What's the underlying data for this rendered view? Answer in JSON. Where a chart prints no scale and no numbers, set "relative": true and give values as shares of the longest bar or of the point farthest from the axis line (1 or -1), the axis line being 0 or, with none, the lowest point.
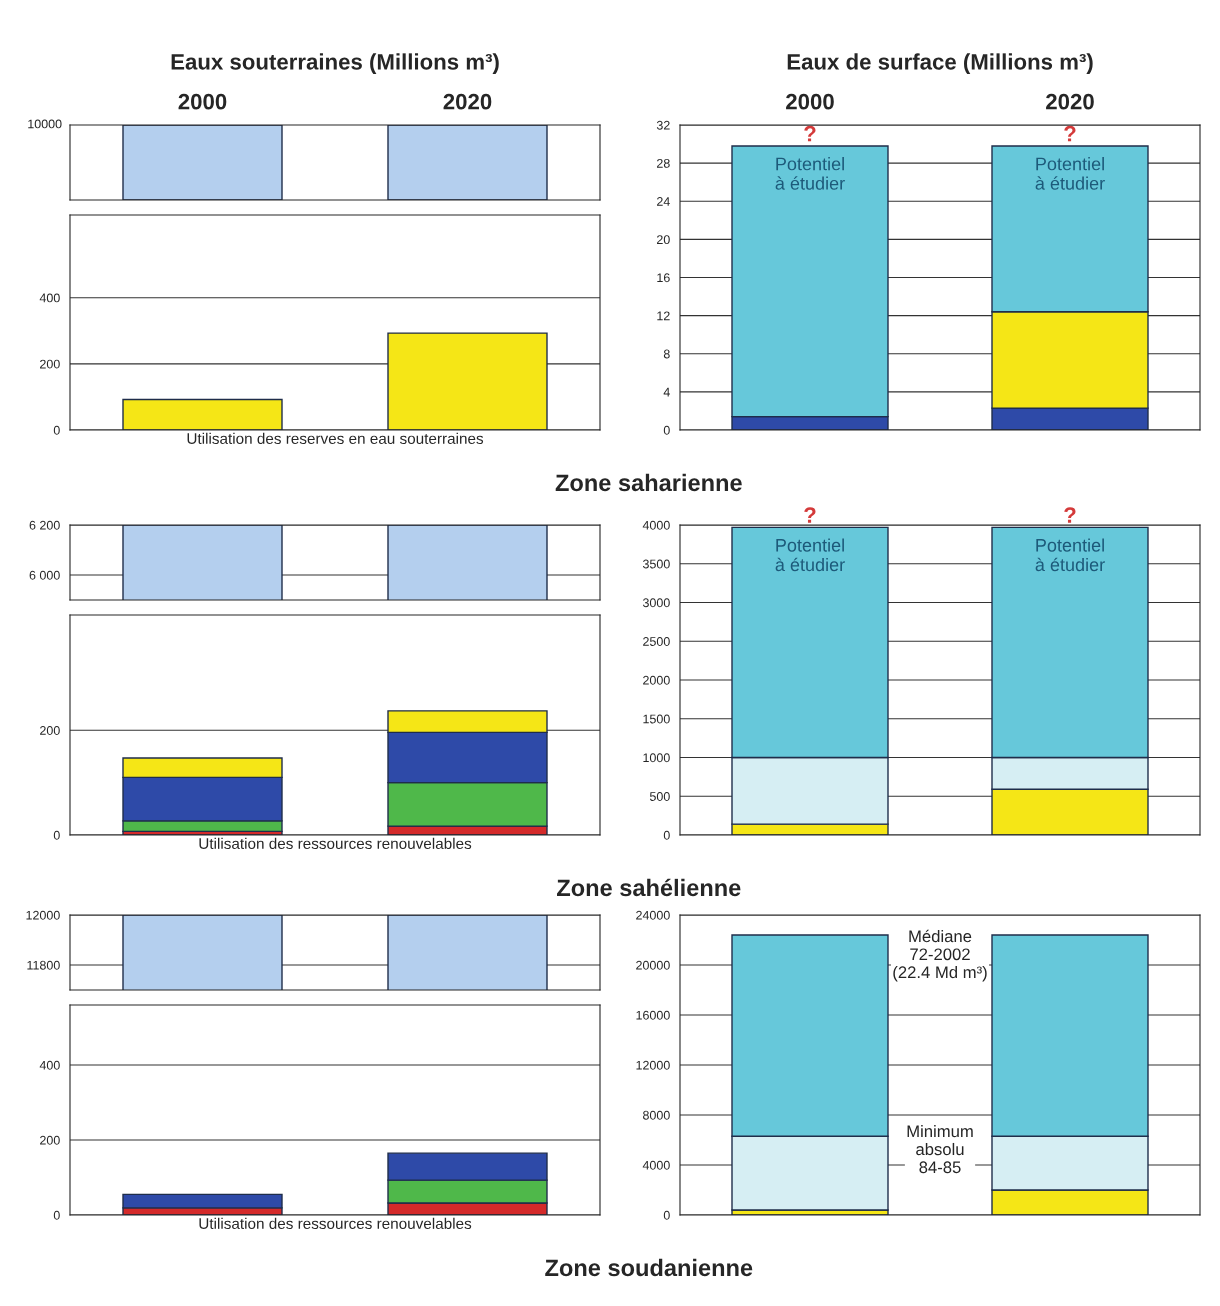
{
  "chart_data": [
    {
      "type": "bar",
      "title": "Eaux souterraines (Millions m³)",
      "categories": [
        "2000",
        "2020"
      ],
      "relative": true,
      "annotations": [
        "10000"
      ],
      "series": [
        {
          "color": "#b4cfee",
          "values": [
            1,
            1
          ]
        }
      ]
    },
    {
      "type": "bar",
      "xlabel": "Utilisation des reserves en eau souterraines",
      "categories": [
        "2000",
        "2020"
      ],
      "grid": "y",
      "ylim": [
        0,
        650
      ],
      "yticks": [
        0,
        200,
        400
      ],
      "tick_labels": "y",
      "annotations": [
        "Zone saharienne"
      ],
      "series": [
        {
          "color": "#f5e616",
          "values": [
            92,
            293
          ]
        }
      ]
    },
    {
      "type": "bar",
      "title": "Eaux de surface (Millions m³)",
      "categories": [
        "2000",
        "2020"
      ],
      "stacked": true,
      "grid": "y",
      "ylim": [
        0,
        32
      ],
      "yticks": [
        0,
        4,
        8,
        12,
        16,
        20,
        24,
        28,
        32
      ],
      "annotations": [
        {
          "text": "?",
          "x": "2000",
          "y": 29.8
        },
        {
          "text": "?",
          "x": "2020",
          "y": 29.8
        },
        {
          "text": "Potentiel\nà étudier",
          "x": "2000",
          "y": 29.8
        },
        {
          "text": "Potentiel\nà étudier",
          "x": "2020",
          "y": 29.8
        }
      ],
      "series": [
        {
          "color": "#2e4aa8",
          "values": [
            1.4,
            2.3
          ]
        },
        {
          "color": "#f5e616",
          "values": [
            null,
            10.1
          ]
        },
        {
          "color": "#66c8da",
          "values": [
            28.4,
            17.4
          ]
        }
      ]
    },
    {
      "type": "bar",
      "categories": [
        "2000",
        "2020"
      ],
      "grid": "y",
      "ylim": [
        5900,
        6200
      ],
      "yticks": [
        {
          "value": 6000,
          "label": "6 000"
        },
        {
          "value": 6200,
          "label": "6 200"
        }
      ],
      "tick_labels": "y",
      "series": [
        {
          "color": "#b4cfee",
          "values": [
            6200,
            6200
          ]
        }
      ]
    },
    {
      "type": "bar",
      "xlabel": "Utilisation des ressources renouvelables",
      "categories": [
        "2000",
        "2020"
      ],
      "stacked": true,
      "grid": "y",
      "ylim": [
        0,
        420
      ],
      "yticks": [
        0,
        200
      ],
      "tick_labels": "y",
      "annotations": [
        "Zone sahélienne"
      ],
      "series": [
        {
          "color": "#d42a2a",
          "values": [
            7,
            17
          ]
        },
        {
          "color": "#4fb84a",
          "values": [
            20,
            83
          ]
        },
        {
          "color": "#2e4aa8",
          "values": [
            83,
            96
          ]
        },
        {
          "color": "#f5e616",
          "values": [
            37,
            41
          ]
        }
      ]
    },
    {
      "type": "bar",
      "categories": [
        "2000",
        "2020"
      ],
      "stacked": true,
      "grid": "y",
      "ylim": [
        0,
        4000
      ],
      "yticks": [
        0,
        500,
        1000,
        1500,
        2000,
        2500,
        3000,
        3500,
        4000
      ],
      "tick_labels": "y",
      "annotations": [
        {
          "text": "?",
          "x": "2000",
          "y": 3970
        },
        {
          "text": "?",
          "x": "2020",
          "y": 3970
        },
        {
          "text": "Potentiel\nà étudier",
          "x": "2000",
          "y": 3970
        },
        {
          "text": "Potentiel\nà étudier",
          "x": "2020",
          "y": 3970
        }
      ],
      "series": [
        {
          "color": "#f5e616",
          "values": [
            140,
            590
          ]
        },
        {
          "color": "#d6eef3",
          "values": [
            860,
            410
          ]
        },
        {
          "color": "#66c8da",
          "values": [
            2970,
            2970
          ]
        }
      ]
    },
    {
      "type": "bar",
      "categories": [
        "2000",
        "2020"
      ],
      "grid": "y",
      "ylim": [
        11700,
        12000
      ],
      "yticks": [
        11800,
        12000
      ],
      "tick_labels": "y",
      "series": [
        {
          "color": "#b4cfee",
          "values": [
            12000,
            12000
          ]
        }
      ]
    },
    {
      "type": "bar",
      "xlabel": "Utilisation des ressources renouvelables",
      "categories": [
        "2000",
        "2020"
      ],
      "stacked": true,
      "grid": "y",
      "ylim": [
        0,
        560
      ],
      "yticks": [
        0,
        200,
        400
      ],
      "tick_labels": "y",
      "annotations": [
        "Zone soudanienne"
      ],
      "series": [
        {
          "color": "#d42a2a",
          "values": [
            19,
            32
          ]
        },
        {
          "color": "#4fb84a",
          "values": [
            null,
            61
          ]
        },
        {
          "color": "#2e4aa8",
          "values": [
            36,
            72
          ]
        }
      ]
    },
    {
      "type": "bar",
      "categories": [
        "2000",
        "2020"
      ],
      "stacked": true,
      "grid": "y",
      "ylim": [
        0,
        24000
      ],
      "yticks": [
        0,
        4000,
        8000,
        12000,
        16000,
        20000,
        24000
      ],
      "tick_labels": "y",
      "annotations": [
        "Médiane\n72-2002\n(22.4 Md m³)",
        "Minimum\nabsolu\n84-85"
      ],
      "series": [
        {
          "color": "#f5e616",
          "values": [
            400,
            2000
          ]
        },
        {
          "color": "#d6eef3",
          "values": [
            5900,
            4300
          ]
        },
        {
          "color": "#66c8da",
          "values": [
            16100,
            16100
          ]
        }
      ]
    }
  ]
}
